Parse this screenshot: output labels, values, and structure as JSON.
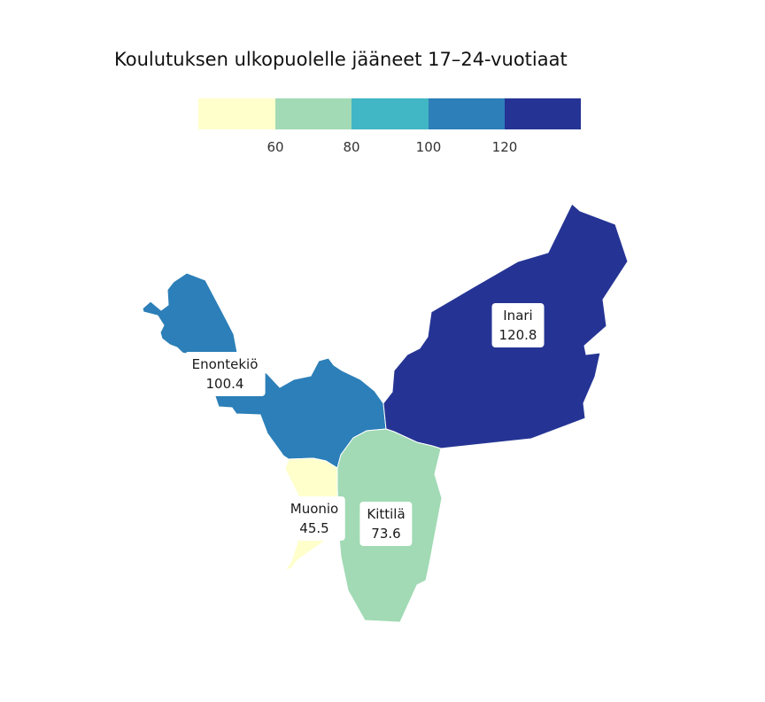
{
  "title": "Koulutuksen ulkopuolelle jääneet 17–24-vuotiaat",
  "legend": {
    "bins": [
      {
        "color": "#ffffcc"
      },
      {
        "color": "#a1dab4"
      },
      {
        "color": "#41b6c4"
      },
      {
        "color": "#2c7fb8"
      },
      {
        "color": "#253494"
      }
    ],
    "ticks": [
      "60",
      "80",
      "100",
      "120"
    ]
  },
  "regions": [
    {
      "name": "Enontekiö",
      "value": "100.4",
      "color": "#2c7fb8"
    },
    {
      "name": "Inari",
      "value": "120.8",
      "color": "#253494"
    },
    {
      "name": "Kittilä",
      "value": "73.6",
      "color": "#a1dab4"
    },
    {
      "name": "Muonio",
      "value": "45.5",
      "color": "#ffffcc"
    }
  ]
}
